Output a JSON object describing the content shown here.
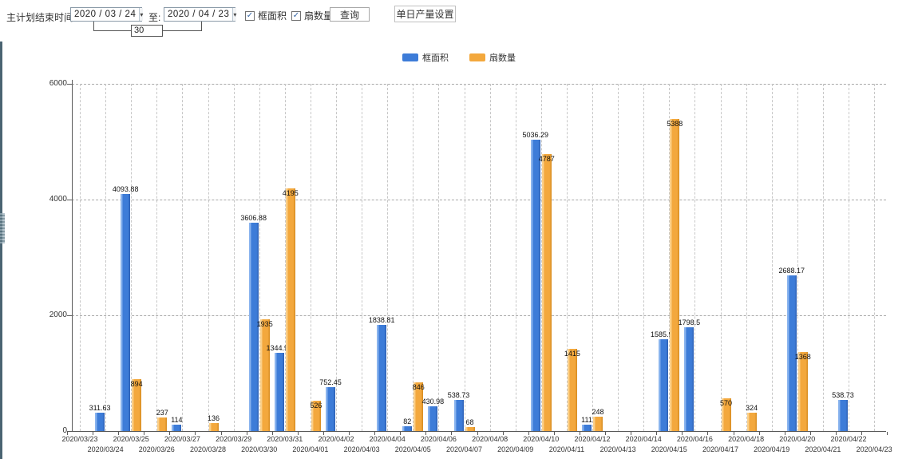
{
  "toolbar": {
    "start_label": "主计划结束时间:",
    "date_from": "2020 / 03 / 24",
    "to_label": "至:",
    "date_to": "2020 / 04 / 23",
    "dropdown_arrow_icon": "▾",
    "days_between": "30",
    "checkbox_frame_area": {
      "label": "框面积",
      "checked": true,
      "check_glyph": "✓"
    },
    "checkbox_sash_count": {
      "label": "扇数量",
      "checked": true,
      "check_glyph": "✓"
    },
    "query_button": "查询",
    "daily_output_button": "单日产量设置"
  },
  "legend": {
    "items": [
      {
        "label": "框面积",
        "color": "#3d7cd8"
      },
      {
        "label": "扇数量",
        "color": "#f3a83d"
      }
    ]
  },
  "colors": {
    "bar_blue": "#3d7cd8",
    "bar_orange": "#f3a83d",
    "splitter": "#4a6472",
    "axis": "#595959"
  },
  "chart_data": {
    "type": "bar",
    "title": "",
    "xlabel": "",
    "ylabel": "",
    "ylim": [
      0,
      6000
    ],
    "yticks": [
      0,
      2000,
      4000,
      6000
    ],
    "grid": true,
    "legend_position": "top",
    "categories": [
      "2020/03/23",
      "2020/03/24",
      "2020/03/25",
      "2020/03/26",
      "2020/03/27",
      "2020/03/28",
      "2020/03/29",
      "2020/03/30",
      "2020/03/31",
      "2020/04/01",
      "2020/04/02",
      "2020/04/03",
      "2020/04/04",
      "2020/04/05",
      "2020/04/06",
      "2020/04/07",
      "2020/04/08",
      "2020/04/09",
      "2020/04/10",
      "2020/04/11",
      "2020/04/12",
      "2020/04/13",
      "2020/04/14",
      "2020/04/15",
      "2020/04/16",
      "2020/04/17",
      "2020/04/18",
      "2020/04/19",
      "2020/04/20",
      "2020/04/21",
      "2020/04/22",
      "2020/04/23"
    ],
    "series": [
      {
        "name": "框面积",
        "color": "#3d7cd8",
        "values": [
          null,
          311.63,
          4093.88,
          null,
          114,
          null,
          null,
          3606.88,
          1344.95,
          null,
          752.45,
          null,
          1838.81,
          82,
          430.98,
          538.73,
          null,
          null,
          5036.29,
          null,
          111,
          null,
          null,
          1585.96,
          1798.5,
          null,
          null,
          null,
          2688.17,
          null,
          538.73,
          null
        ]
      },
      {
        "name": "扇数量",
        "color": "#f3a83d",
        "values": [
          null,
          null,
          894,
          237,
          null,
          136,
          null,
          1935,
          4195,
          526,
          null,
          null,
          null,
          846,
          null,
          68,
          null,
          null,
          4787,
          1415,
          248,
          null,
          null,
          5388,
          null,
          570,
          324,
          null,
          1368,
          null,
          null,
          null
        ]
      }
    ]
  }
}
